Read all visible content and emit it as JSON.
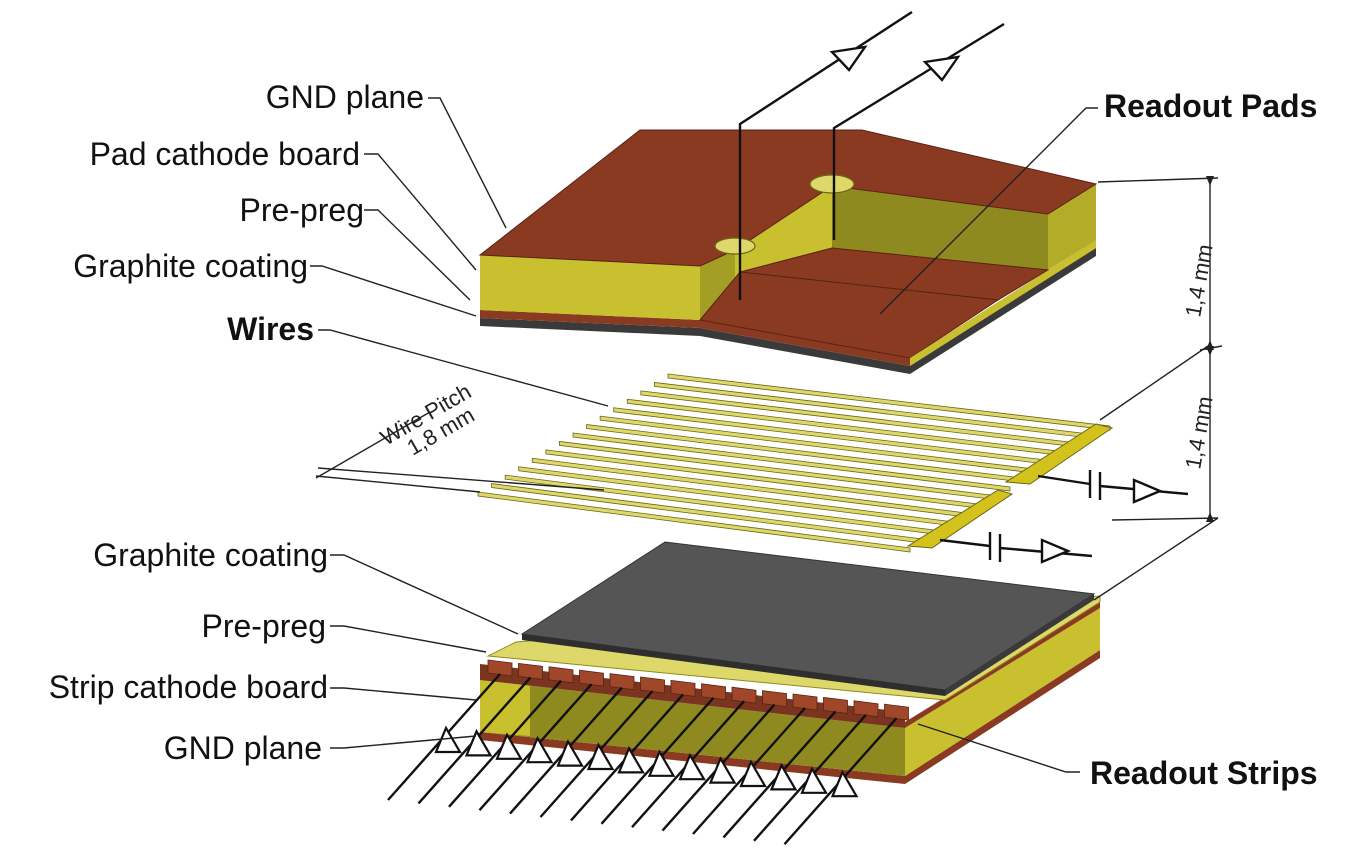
{
  "labels": {
    "gnd_plane_top": "GND plane",
    "pad_cathode_board": "Pad cathode board",
    "pre_preg_top": "Pre-preg",
    "graphite_coating_top": "Graphite coating",
    "wires": "Wires",
    "readout_pads": "Readout Pads",
    "graphite_coating_bottom": "Graphite coating",
    "pre_preg_bottom": "Pre-preg",
    "strip_cathode_board": "Strip cathode board",
    "gnd_plane_bottom": "GND plane",
    "readout_strips": "Readout Strips"
  },
  "dimensions": {
    "gap_top": "1,4 mm",
    "gap_bottom": "1,4 mm",
    "wire_pitch_title": "Wire Pitch",
    "wire_pitch_value": "1,8 mm"
  },
  "colors": {
    "copper": "#8b3a22",
    "copper_light": "#a0472a",
    "board_front": "#c8c02e",
    "board_side": "#8e8a20",
    "board_light": "#ded86a",
    "graphite": "#555555",
    "graphite_dark": "#3a3a3a"
  }
}
